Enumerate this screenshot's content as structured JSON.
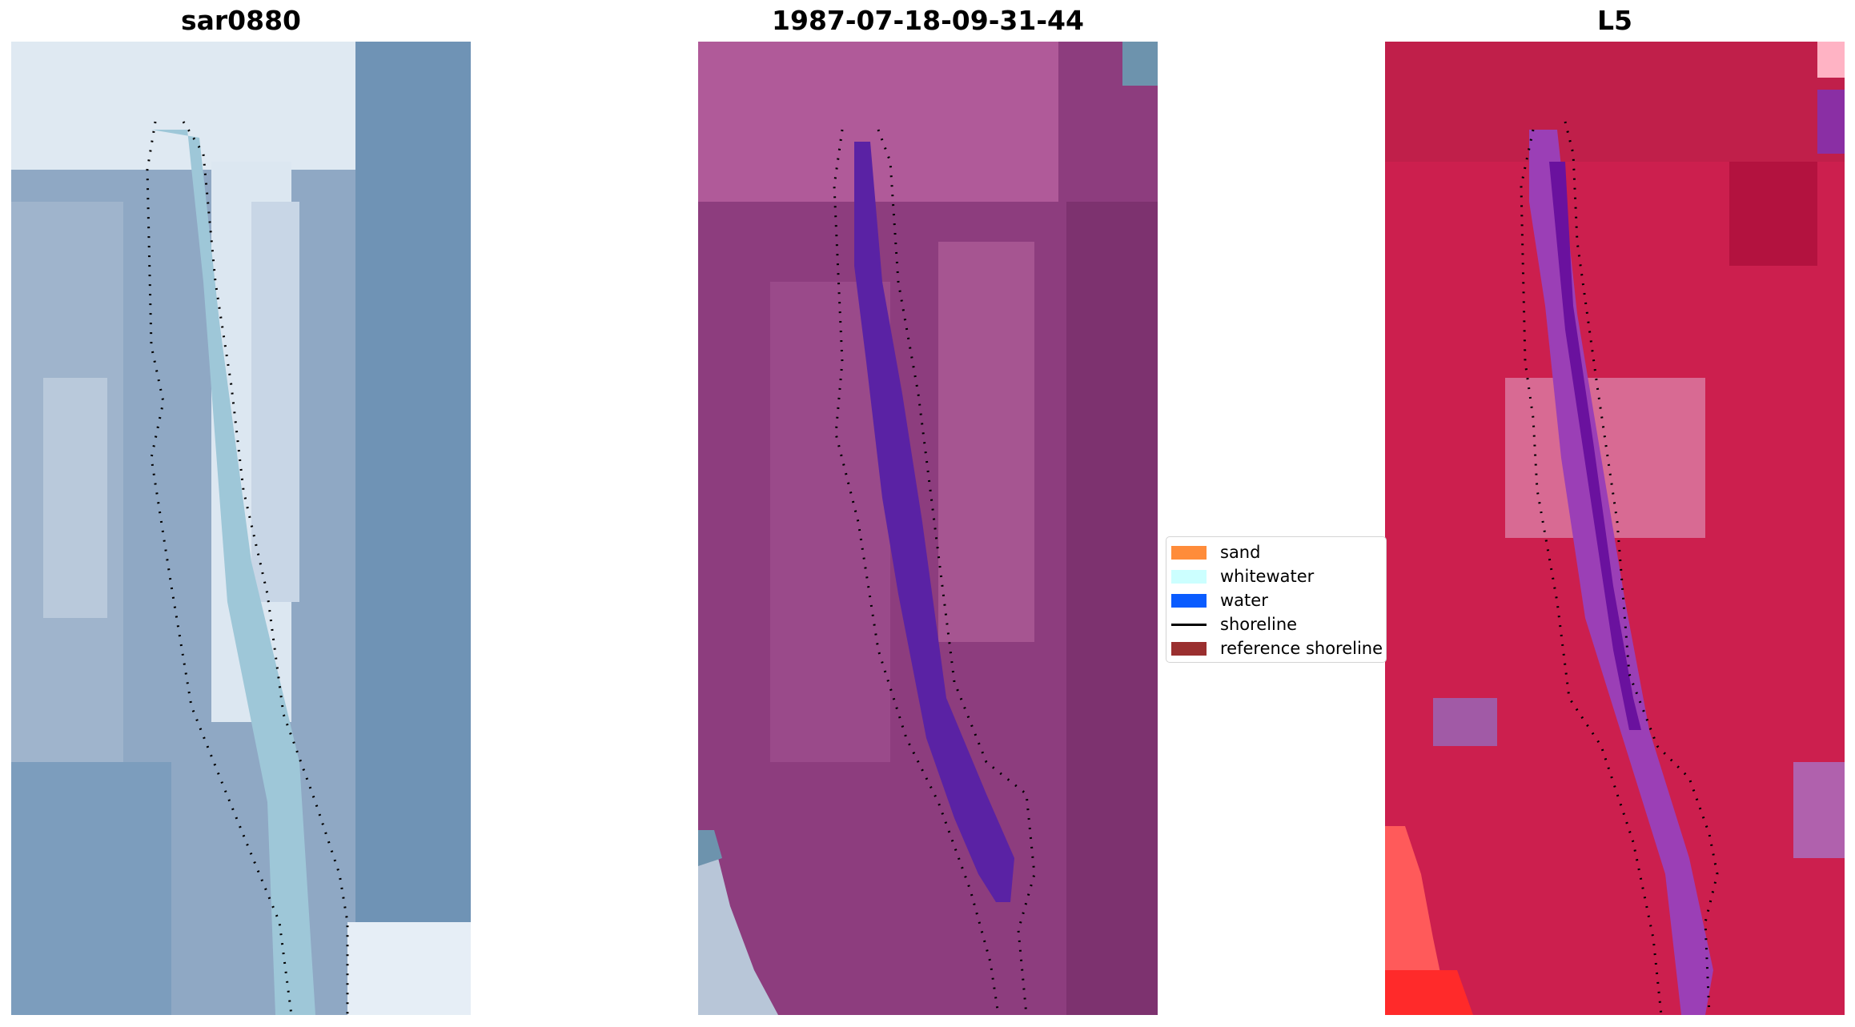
{
  "panels": [
    {
      "id": "sar",
      "title": "sar0880",
      "palette": "rgb"
    },
    {
      "id": "date",
      "title": "1987-07-18-09-31-44",
      "palette": "classified"
    },
    {
      "id": "sat",
      "title": "L5",
      "palette": "index"
    }
  ],
  "legend": {
    "items": [
      {
        "label": "sand",
        "color": "#ff8c3a",
        "kind": "patch"
      },
      {
        "label": "whitewater",
        "color": "#ccffff",
        "kind": "patch"
      },
      {
        "label": "water",
        "color": "#0a5cff",
        "kind": "patch"
      },
      {
        "label": "shoreline",
        "color": "#000000",
        "kind": "line"
      },
      {
        "label": "reference shoreline",
        "color": "#9a2f2f",
        "kind": "patch"
      }
    ]
  },
  "colors": {
    "sar_base": "#8fa8c4",
    "sar_light": "#e6eef6",
    "sar_channel": "#9ec7d8",
    "date_base": "#8d3d7e",
    "date_channel": "#5a22a4",
    "sat_base": "#cc1f4e",
    "sat_channel": "#7a18a6",
    "sat_corner": "#ff2a2a"
  }
}
